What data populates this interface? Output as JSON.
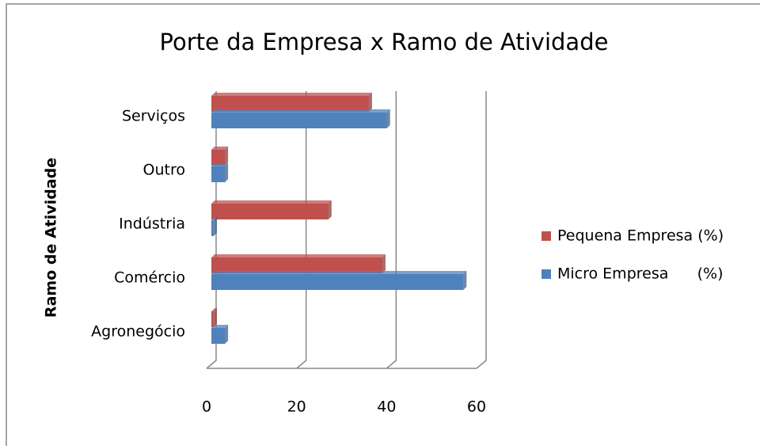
{
  "chart_data": {
    "type": "hbar3d",
    "title": "Porte da Empresa x Ramo de Atividade",
    "y_axis_label": "Ramo de Atividade",
    "categories": [
      "Agronegócio",
      "Comércio",
      "Indústria",
      "Outro",
      "Serviços"
    ],
    "series": [
      {
        "name": "Pequena Empresa (%)",
        "color": "#c0504d",
        "values": [
          0.5,
          38,
          26,
          3,
          35
        ]
      },
      {
        "name": "Micro Empresa      (%)",
        "color": "#4f81bd",
        "values": [
          3,
          56,
          0.5,
          3,
          39
        ]
      }
    ],
    "xlim": [
      0,
      60
    ],
    "xticks": [
      0,
      20,
      40,
      60
    ],
    "grid": true,
    "legend": "right"
  }
}
